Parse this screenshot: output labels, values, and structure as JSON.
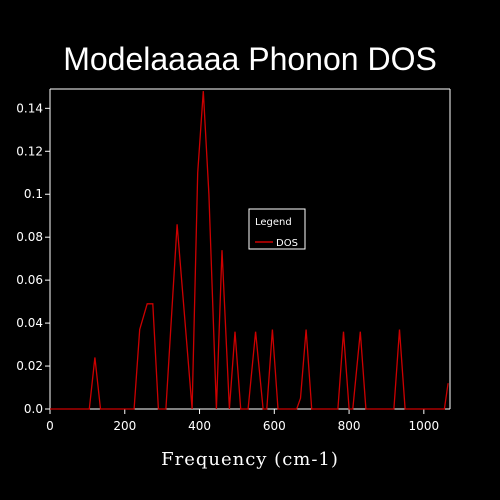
{
  "chart_data": {
    "type": "line",
    "title": "Modelaaaaa Phonon DOS",
    "xlabel": "Frequency (cm-1)",
    "ylabel": "",
    "xlim": [
      0,
      1070
    ],
    "ylim": [
      0,
      0.149
    ],
    "xticks": [
      0,
      200,
      400,
      600,
      800,
      1000
    ],
    "xtick_labels": [
      "0",
      "200",
      "400",
      "600",
      "800",
      "1000"
    ],
    "yticks": [
      0,
      0.02,
      0.04,
      0.06,
      0.08,
      0.1,
      0.12,
      0.14
    ],
    "ytick_labels": [
      "0.0",
      "0.02",
      "0.04",
      "0.06",
      "0.08",
      "0.1",
      "0.12",
      "0.14"
    ],
    "grid": false,
    "legend": {
      "title": "Legend",
      "placement": "center-right"
    },
    "series": [
      {
        "name": "DOS",
        "color": "#cc0000",
        "x": [
          0,
          105,
          120,
          135,
          225,
          240,
          260,
          275,
          290,
          310,
          340,
          380,
          395,
          410,
          425,
          445,
          460,
          480,
          495,
          510,
          530,
          550,
          570,
          580,
          595,
          610,
          660,
          670,
          685,
          700,
          770,
          785,
          800,
          810,
          830,
          845,
          920,
          935,
          950,
          1055,
          1065
        ],
        "y": [
          0,
          0,
          0.024,
          0,
          0,
          0.037,
          0.049,
          0.049,
          0,
          0,
          0.086,
          0,
          0.11,
          0.148,
          0.1,
          0,
          0.074,
          0,
          0.036,
          0,
          0,
          0.036,
          0,
          0,
          0.037,
          0,
          0,
          0.005,
          0.037,
          0,
          0,
          0.036,
          0,
          0,
          0.036,
          0,
          0,
          0.037,
          0,
          0,
          0.012
        ]
      }
    ]
  }
}
